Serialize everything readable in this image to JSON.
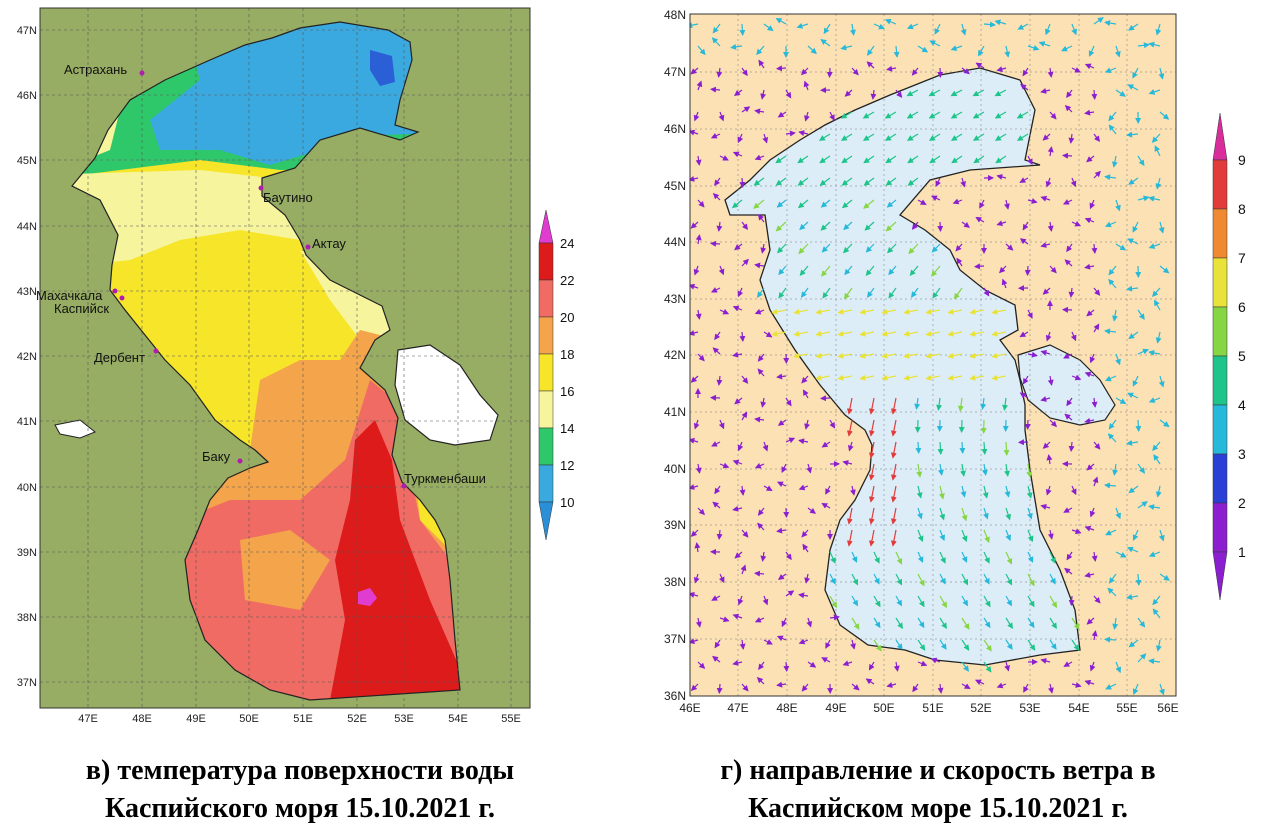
{
  "left_map": {
    "lat_labels": [
      "47N",
      "46N",
      "45N",
      "44N",
      "43N",
      "42N",
      "41N",
      "40N",
      "39N",
      "38N",
      "37N"
    ],
    "lon_labels": [
      "47E",
      "48E",
      "49E",
      "50E",
      "51E",
      "52E",
      "53E",
      "54E",
      "55E"
    ],
    "cities": [
      "Астрахань",
      "Баутино",
      "Актау",
      "Махачкала",
      "Каспийск",
      "Дербент",
      "Баку",
      "Туркменбаши"
    ],
    "colorbar": {
      "labels": [
        "10",
        "12",
        "14",
        "16",
        "18",
        "20",
        "22",
        "24"
      ],
      "colors": [
        "#3aa9e0",
        "#2ec86a",
        "#f6f59e",
        "#f7e52a",
        "#f4a44a",
        "#ef6b63",
        "#dd1b1b",
        "#e03cd0"
      ]
    },
    "colors": {
      "land": "#97ad63",
      "lake": "#ffffff"
    }
  },
  "right_map": {
    "lat_labels": [
      "48N",
      "47N",
      "46N",
      "45N",
      "44N",
      "43N",
      "42N",
      "41N",
      "40N",
      "39N",
      "38N",
      "37N",
      "36N"
    ],
    "lon_labels": [
      "46E",
      "47E",
      "48E",
      "49E",
      "50E",
      "51E",
      "52E",
      "53E",
      "54E",
      "55E",
      "56E"
    ],
    "colorbar": {
      "labels": [
        "1",
        "2",
        "3",
        "4",
        "5",
        "6",
        "7",
        "8",
        "9"
      ],
      "colors": [
        "#8b1fd0",
        "#2a3fd6",
        "#27b9d9",
        "#1ec48a",
        "#86d544",
        "#e8e23a",
        "#f08a32",
        "#e23b3b",
        "#d92d9c"
      ]
    },
    "colors": {
      "land": "#fbe1b3",
      "sea": "#ddedf7"
    }
  },
  "captions": {
    "left_line1": "в) температура поверхности воды",
    "left_line2": "Каспийского моря 15.10.2021 г.",
    "right_line1": "г) направление и скорость ветра в",
    "right_line2": "Каспийском море 15.10.2021 г."
  }
}
